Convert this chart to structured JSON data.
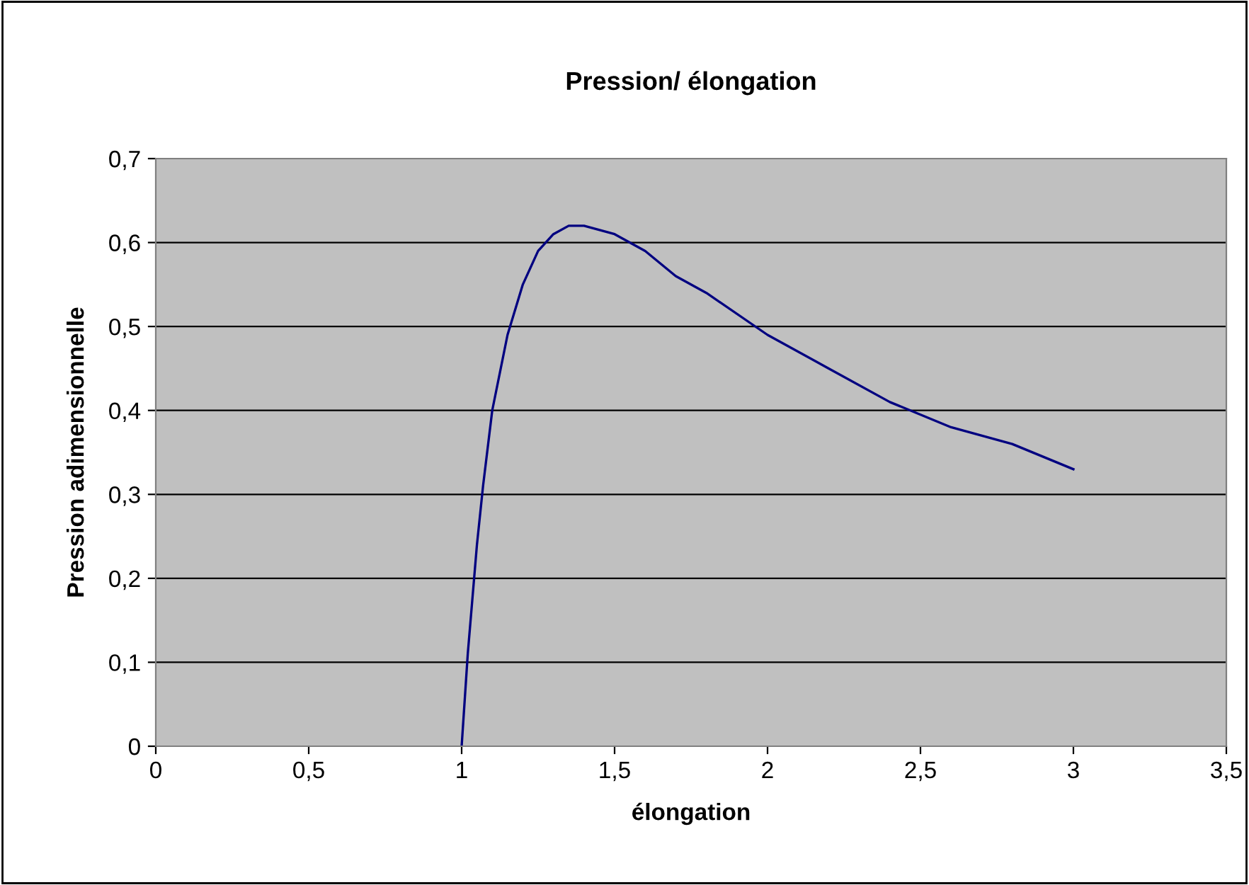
{
  "chart_data": {
    "type": "line",
    "title": "Pression/ élongation",
    "xlabel": "élongation",
    "ylabel": "Pression adimensionnelle",
    "series": [
      {
        "color": "#000080",
        "x": [
          1.0,
          1.02,
          1.05,
          1.07,
          1.1,
          1.15,
          1.2,
          1.25,
          1.3,
          1.35,
          1.4,
          1.5,
          1.6,
          1.7,
          1.8,
          2.0,
          2.2,
          2.4,
          2.6,
          2.8,
          3.0
        ],
        "values": [
          0,
          0.11,
          0.24,
          0.31,
          0.4,
          0.49,
          0.55,
          0.59,
          0.61,
          0.62,
          0.62,
          0.61,
          0.59,
          0.56,
          0.54,
          0.49,
          0.45,
          0.41,
          0.38,
          0.36,
          0.33
        ]
      }
    ],
    "xlim": [
      0,
      3.5
    ],
    "xticks": [
      {
        "value": 0,
        "label": "0"
      },
      {
        "value": 0.5,
        "label": "0,5"
      },
      {
        "value": 1,
        "label": "1"
      },
      {
        "value": 1.5,
        "label": "1,5"
      },
      {
        "value": 2,
        "label": "2"
      },
      {
        "value": 2.5,
        "label": "2,5"
      },
      {
        "value": 3,
        "label": "3"
      },
      {
        "value": 3.5,
        "label": "3,5"
      }
    ],
    "ylim": [
      0,
      0.7
    ],
    "yticks": [
      {
        "value": 0,
        "label": "0"
      },
      {
        "value": 0.1,
        "label": "0,1"
      },
      {
        "value": 0.2,
        "label": "0,2"
      },
      {
        "value": 0.3,
        "label": "0,3"
      },
      {
        "value": 0.4,
        "label": "0,4"
      },
      {
        "value": 0.5,
        "label": "0,5"
      },
      {
        "value": 0.6,
        "label": "0,6"
      },
      {
        "value": 0.7,
        "label": "0,7"
      }
    ],
    "grid": "y",
    "marker": "none",
    "line_style": "solid"
  }
}
